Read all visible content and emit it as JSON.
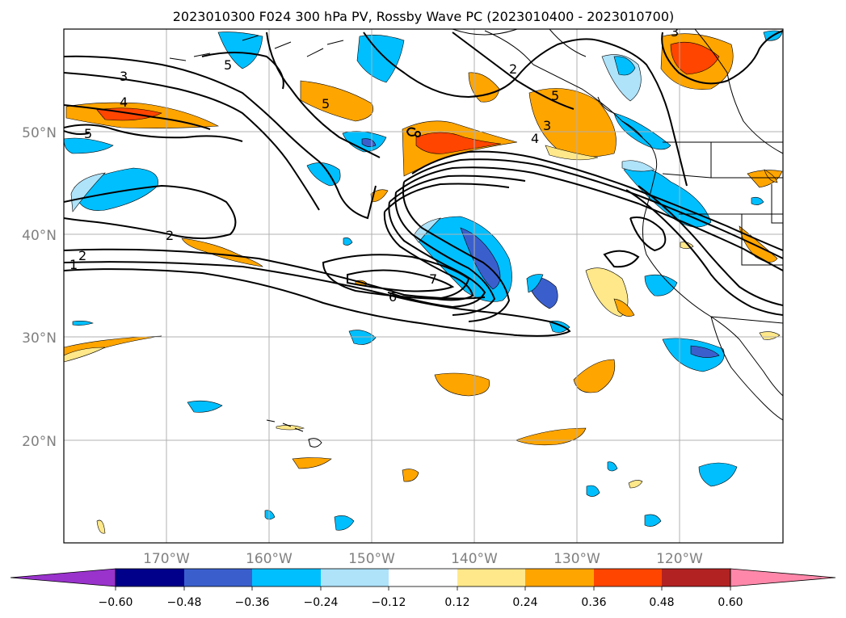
{
  "title": "2023010300 F024 300 hPa PV, Rossby Wave PC (2023010400 - 2023010700)",
  "map": {
    "lon_ticks": [
      "170°W",
      "160°W",
      "150°W",
      "140°W",
      "130°W",
      "120°W"
    ],
    "lat_ticks": [
      "50°N",
      "40°N",
      "30°N",
      "20°N"
    ],
    "contour_labels": [
      "3",
      "4",
      "5",
      "5",
      "5",
      "2",
      "2",
      "1",
      "2",
      "3",
      "4",
      "6",
      "7",
      "3",
      "5"
    ]
  },
  "colorbar": {
    "tick_labels": [
      "−0.60",
      "−0.48",
      "−0.36",
      "−0.24",
      "−0.12",
      "0.12",
      "0.24",
      "0.36",
      "0.48",
      "0.60"
    ],
    "colors": [
      "#9933cc",
      "#00008b",
      "#3a5fcd",
      "#00bfff",
      "#aee3fa",
      "#ffffff",
      "#ffe88a",
      "#ffa500",
      "#ff4500",
      "#b22222",
      "#ff88aa"
    ]
  },
  "chart_data": {
    "type": "map",
    "title": "2023010300 F024 300 hPa PV, Rossby Wave PC (2023010400 - 2023010700)",
    "variable": "300 hPa PV (contours) and Rossby Wave PC (shaded)",
    "lon_range": [
      -180,
      -110
    ],
    "lat_range": [
      10,
      60
    ],
    "colorbar_levels": [
      -0.6,
      -0.48,
      -0.36,
      -0.24,
      -0.12,
      0.12,
      0.24,
      0.36,
      0.48,
      0.6
    ]
  }
}
